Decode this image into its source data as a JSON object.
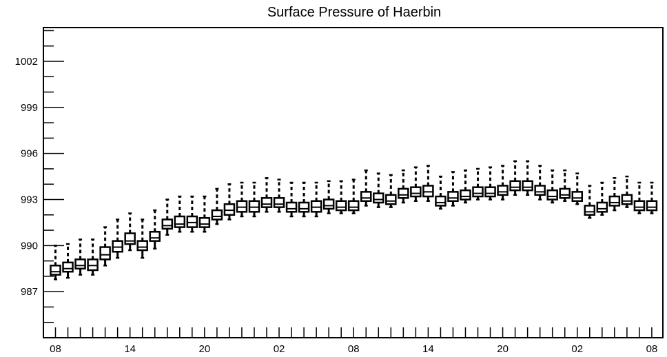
{
  "chart_data": {
    "type": "box",
    "title": "Surface Pressure of Haerbin",
    "xlabel": "",
    "ylabel": "",
    "ylim": [
      984.0,
      1004.2
    ],
    "y_ticks": [
      987,
      990,
      993,
      996,
      999,
      1002
    ],
    "x_tick_labels": [
      "08",
      "14",
      "20",
      "02",
      "08",
      "14",
      "20",
      "02",
      "08"
    ],
    "x_tick_label_index": [
      0,
      6,
      12,
      18,
      24,
      30,
      36,
      42,
      48
    ],
    "grid": false,
    "legend": "none",
    "series": [
      {
        "lower_whisker": [
          987.8,
          987.9,
          988.1,
          988.1,
          988.7,
          989.2,
          989.7,
          989.2,
          989.8,
          990.7,
          990.9,
          990.9,
          990.9,
          991.4,
          991.7,
          991.9,
          991.9,
          992.2,
          992.2,
          991.9,
          991.9,
          991.9,
          992.1,
          992.1,
          992.1,
          992.6,
          992.5,
          992.5,
          992.8,
          992.9,
          992.9,
          992.4,
          992.6,
          992.8,
          993.0,
          993.0,
          993.0,
          993.3,
          993.3,
          993.0,
          992.8,
          992.9,
          992.7,
          991.8,
          992.0,
          992.3,
          992.5,
          992.1,
          992.1
        ],
        "q1": [
          988.1,
          988.3,
          988.5,
          988.4,
          989.1,
          989.6,
          990.1,
          989.7,
          990.3,
          991.1,
          991.2,
          991.2,
          991.2,
          991.7,
          992.0,
          992.2,
          992.2,
          992.5,
          992.5,
          992.2,
          992.2,
          992.2,
          992.4,
          992.3,
          992.3,
          992.9,
          992.8,
          992.7,
          993.1,
          993.2,
          993.2,
          992.6,
          992.9,
          993.0,
          993.2,
          993.2,
          993.3,
          993.6,
          993.6,
          993.3,
          993.0,
          993.1,
          992.9,
          992.0,
          992.2,
          992.6,
          992.7,
          992.3,
          992.3
        ],
        "median": [
          988.3,
          988.5,
          988.7,
          988.7,
          989.4,
          989.9,
          990.3,
          989.9,
          990.5,
          991.3,
          991.4,
          991.5,
          991.4,
          991.9,
          992.3,
          992.5,
          992.5,
          992.7,
          992.7,
          992.4,
          992.4,
          992.5,
          992.6,
          992.5,
          992.5,
          993.1,
          993.0,
          992.9,
          993.3,
          993.4,
          993.5,
          992.8,
          993.1,
          993.2,
          993.4,
          993.4,
          993.5,
          993.8,
          993.8,
          993.5,
          993.2,
          993.3,
          993.1,
          992.2,
          992.4,
          992.8,
          992.9,
          992.5,
          992.5
        ],
        "q3": [
          988.7,
          988.9,
          989.1,
          989.1,
          989.9,
          990.3,
          990.8,
          990.3,
          990.9,
          991.7,
          991.9,
          991.9,
          991.8,
          992.3,
          992.7,
          992.9,
          992.9,
          993.1,
          993.1,
          992.8,
          992.8,
          992.9,
          993.0,
          992.9,
          992.9,
          993.5,
          993.4,
          993.3,
          993.7,
          993.8,
          993.9,
          993.2,
          993.5,
          993.6,
          993.8,
          993.8,
          993.9,
          994.2,
          994.2,
          993.9,
          993.6,
          993.7,
          993.5,
          992.6,
          992.8,
          993.2,
          993.3,
          992.9,
          992.9
        ],
        "upper_whisker": [
          990.0,
          990.1,
          990.4,
          990.4,
          991.2,
          991.7,
          992.1,
          991.7,
          992.3,
          993.0,
          993.2,
          993.2,
          993.2,
          993.7,
          994.0,
          994.1,
          994.1,
          994.4,
          994.3,
          994.1,
          994.1,
          994.1,
          994.2,
          994.2,
          994.3,
          994.9,
          994.7,
          994.6,
          994.9,
          995.1,
          995.2,
          994.5,
          994.8,
          994.9,
          995.0,
          995.1,
          995.2,
          995.5,
          995.5,
          995.2,
          994.9,
          994.9,
          994.7,
          993.9,
          994.1,
          994.4,
          994.5,
          994.1,
          994.1
        ]
      }
    ]
  }
}
